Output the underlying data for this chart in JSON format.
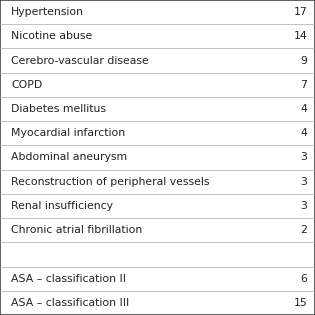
{
  "rows": [
    {
      "label": "Hypertension",
      "value": "17"
    },
    {
      "label": "Nicotine abuse",
      "value": "14"
    },
    {
      "label": "Cerebro-vascular disease",
      "value": "9"
    },
    {
      "label": "COPD",
      "value": "7"
    },
    {
      "label": "Diabetes mellitus",
      "value": "4"
    },
    {
      "label": "Myocardial infarction",
      "value": "4"
    },
    {
      "label": "Abdominal aneurysm",
      "value": "3"
    },
    {
      "label": "Reconstruction of peripheral vessels",
      "value": "3"
    },
    {
      "label": "Renal insufficiency",
      "value": "3"
    },
    {
      "label": "Chronic atrial fibrillation",
      "value": "2"
    },
    {
      "label": "",
      "value": ""
    },
    {
      "label": "ASA – classification II",
      "value": "6"
    },
    {
      "label": "ASA – classification III",
      "value": "15"
    }
  ],
  "border_color": "#444444",
  "text_color": "#222222",
  "bg_color": "#ffffff",
  "font_size": 7.8
}
